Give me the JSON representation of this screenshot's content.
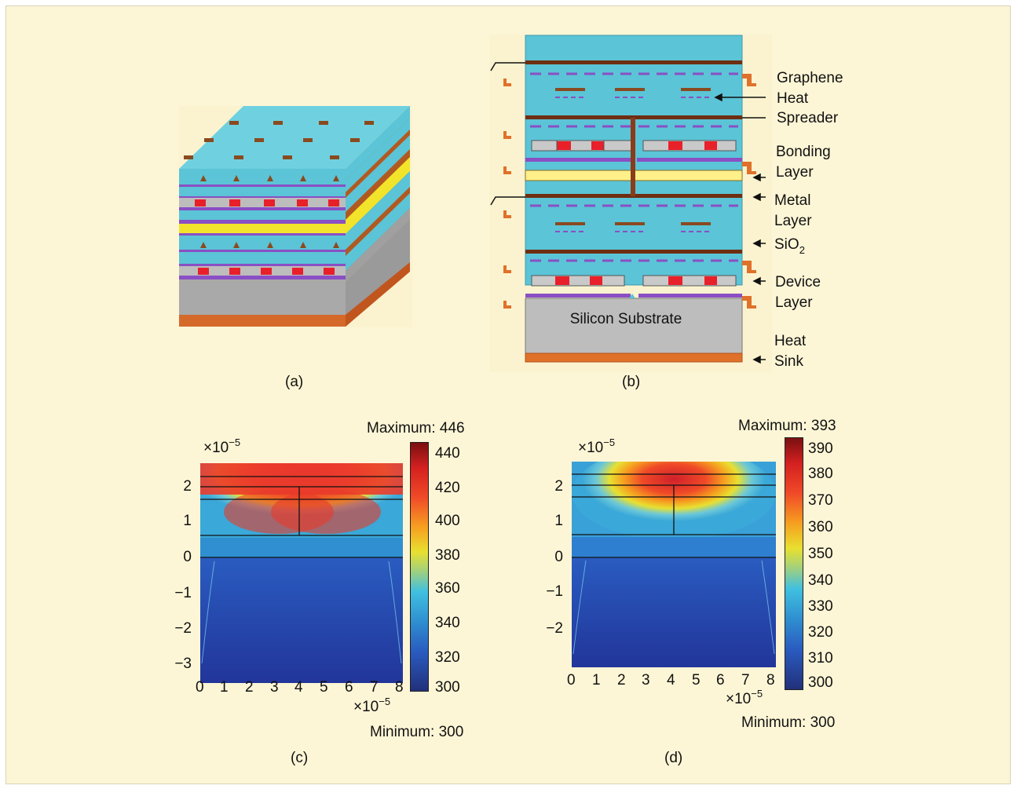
{
  "panels": {
    "a": {
      "caption": "(a)"
    },
    "b": {
      "caption": "(b)",
      "substrate_label": "Silicon Substrate",
      "annotations": [
        {
          "id": "graphene",
          "lines": [
            "Graphene",
            "Heat",
            "Spreader"
          ]
        },
        {
          "id": "bonding",
          "lines": [
            "Bonding",
            "Layer"
          ]
        },
        {
          "id": "metal",
          "lines": [
            "Metal",
            "Layer"
          ]
        },
        {
          "id": "sio2",
          "text": "SiO",
          "subscript": "2"
        },
        {
          "id": "device",
          "lines": [
            "Device",
            "Layer"
          ]
        },
        {
          "id": "heatsink",
          "lines": [
            "Heat",
            "Sink"
          ]
        }
      ]
    },
    "c": {
      "caption": "(c)",
      "maximum_label": "Maximum: 446",
      "minimum_label": "Minimum: 300",
      "y_multiplier": {
        "base": "×10",
        "exp": "−5"
      },
      "x_multiplier": {
        "base": "×10",
        "exp": "−5"
      },
      "y_ticks": [
        "2",
        "1",
        "0",
        "−1",
        "−2",
        "−3"
      ],
      "x_ticks": [
        "0",
        "1",
        "2",
        "3",
        "4",
        "5",
        "6",
        "7",
        "8"
      ],
      "colorbar_ticks": [
        "440",
        "420",
        "400",
        "380",
        "360",
        "340",
        "320",
        "300"
      ]
    },
    "d": {
      "caption": "(d)",
      "maximum_label": "Maximum: 393",
      "minimum_label": "Minimum: 300",
      "y_multiplier": {
        "base": "×10",
        "exp": "−5"
      },
      "x_multiplier": {
        "base": "×10",
        "exp": "−5"
      },
      "y_ticks": [
        "2",
        "1",
        "0",
        "−1",
        "−2"
      ],
      "x_ticks": [
        "0",
        "1",
        "2",
        "3",
        "4",
        "5",
        "6",
        "7",
        "8"
      ],
      "colorbar_ticks": [
        "390",
        "380",
        "370",
        "360",
        "350",
        "340",
        "330",
        "320",
        "310",
        "300"
      ]
    }
  },
  "colors": {
    "background": "#fdf6d6",
    "oxide": "#5bc4d6",
    "metal_brown": "#8a3c1a",
    "graphene_purple": "#8a4fc4",
    "heat_sink_orange": "#e0712a",
    "substrate_gray": "#bdbdbd",
    "device_red": "#e8202a",
    "bonding_yellow": "#fff089"
  }
}
